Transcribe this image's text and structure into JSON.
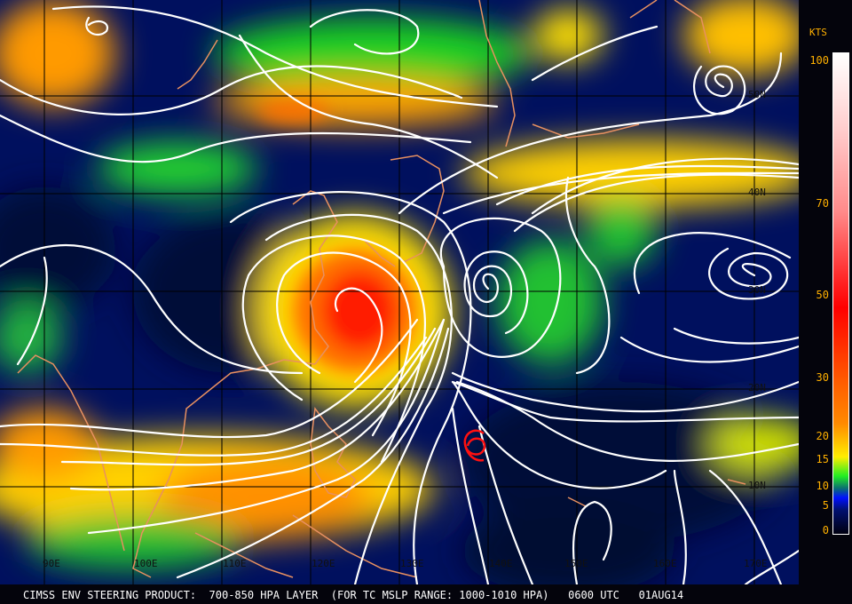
{
  "footer": {
    "product_title": "CIMSS ENV STEERING PRODUCT:  700-850 HPA LAYER  (FOR TC MSLP RANGE: 1000-1010 HPA)   0600 UTC   01AUG14"
  },
  "colorbar": {
    "units": "KTS",
    "labels": [
      "100",
      "70",
      "50",
      "30",
      "20",
      "15",
      "10",
      "5",
      "0"
    ],
    "top_color": "#ffffff",
    "mid_color": "#ff0000",
    "low_color": "#ffee00",
    "green_color": "#22ee22",
    "blue_color": "#0010ff",
    "zero_color": "#000010"
  },
  "map": {
    "longitude_labels": [
      "90E",
      "100E",
      "110E",
      "120E",
      "130E",
      "140E",
      "150E",
      "160E",
      "170E"
    ],
    "latitude_labels": [
      "50N",
      "40N",
      "30N",
      "20N",
      "10N"
    ],
    "streamline_color": "#ffffff",
    "coastline_color": "#e89060",
    "grid_color": "#000000",
    "storm_symbol": "tropical-cyclone-icon",
    "storm_symbol_color": "#ff1010"
  }
}
